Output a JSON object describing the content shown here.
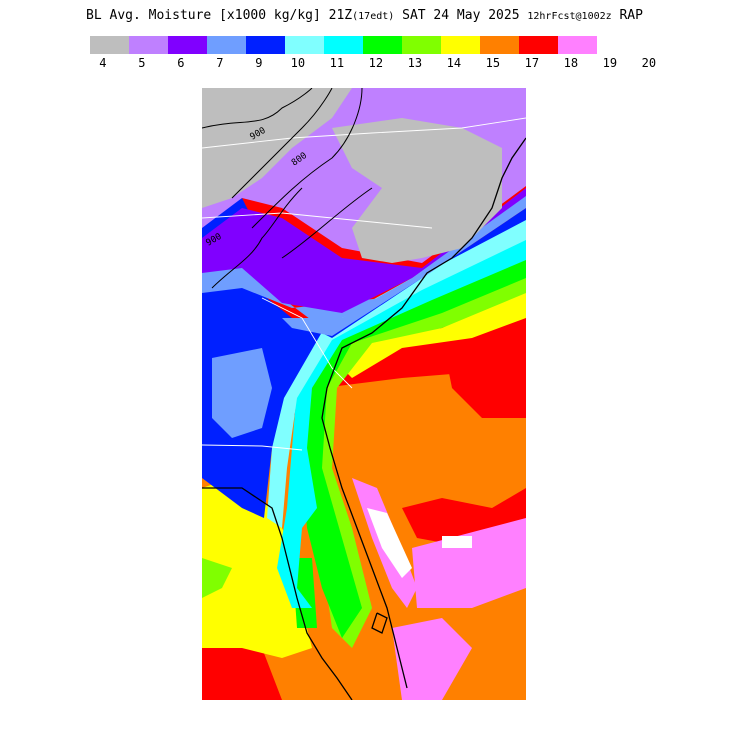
{
  "header": {
    "title_main": "BL Avg. Moisture [x1000 kg/kg] 21Z",
    "title_edt": "(17edt)",
    "title_date": " SAT 24 May 2025 ",
    "title_fcst": "12hrFcst@1002z",
    "title_model": " RAP"
  },
  "legend": {
    "colors": [
      "#bebebe",
      "#bf80ff",
      "#8000ff",
      "#6f9eff",
      "#0020ff",
      "#80ffff",
      "#00ffff",
      "#00ff00",
      "#80ff00",
      "#ffff00",
      "#ff8000",
      "#ff0000",
      "#ff80ff"
    ],
    "labels": [
      "4",
      "5",
      "6",
      "7",
      "9",
      "10",
      "11",
      "12",
      "13",
      "14",
      "15",
      "17",
      "18",
      "19",
      "20"
    ]
  },
  "map": {
    "contour_labels": [
      "900",
      "800",
      "900"
    ]
  }
}
